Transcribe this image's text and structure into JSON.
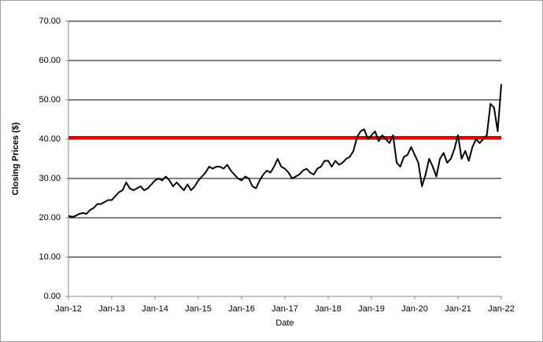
{
  "chart_data": {
    "type": "line",
    "x_label": "Date",
    "y_label": "Closing Prices ($)",
    "categories": [
      "Jan-12",
      null,
      null,
      null,
      null,
      null,
      null,
      null,
      null,
      null,
      null,
      null,
      "Jan-13",
      null,
      null,
      null,
      null,
      null,
      null,
      null,
      null,
      null,
      null,
      null,
      "Jan-14",
      null,
      null,
      null,
      null,
      null,
      null,
      null,
      null,
      null,
      null,
      null,
      "Jan-15",
      null,
      null,
      null,
      null,
      null,
      null,
      null,
      null,
      null,
      null,
      null,
      "Jan-16",
      null,
      null,
      null,
      null,
      null,
      null,
      null,
      null,
      null,
      null,
      null,
      "Jan-17",
      null,
      null,
      null,
      null,
      null,
      null,
      null,
      null,
      null,
      null,
      null,
      "Jan-18",
      null,
      null,
      null,
      null,
      null,
      null,
      null,
      null,
      null,
      null,
      null,
      "Jan-19",
      null,
      null,
      null,
      null,
      null,
      null,
      null,
      null,
      null,
      null,
      null,
      "Jan-20",
      null,
      null,
      null,
      null,
      null,
      null,
      null,
      null,
      null,
      null,
      null,
      "Jan-21",
      null,
      null,
      null,
      null,
      null,
      null,
      null,
      null,
      null,
      null,
      null,
      "Jan-22"
    ],
    "values": [
      20.5,
      20.2,
      20.5,
      21,
      21.2,
      21.0,
      22,
      22.5,
      23.5,
      23.5,
      24,
      24.5,
      24.5,
      25.5,
      26.5,
      27,
      29,
      27.5,
      27,
      27.5,
      28,
      27,
      27.5,
      28.5,
      29.5,
      30,
      29.5,
      30.5,
      29.5,
      28,
      29,
      28,
      27,
      28.5,
      27,
      28,
      29.5,
      30.5,
      31.5,
      33,
      32.5,
      33,
      33,
      32.5,
      33.5,
      32,
      31,
      30,
      29.5,
      30.5,
      30,
      28,
      27.5,
      29.5,
      31,
      32,
      31.5,
      33,
      35,
      33,
      32.5,
      31.5,
      30,
      30.5,
      31,
      32,
      32.5,
      31.5,
      31,
      32.5,
      33,
      34.5,
      34.5,
      33,
      34.5,
      33.5,
      34,
      35,
      35.5,
      37,
      40.5,
      42,
      42.5,
      40,
      41,
      42,
      39.5,
      41,
      40,
      39,
      41,
      34,
      33,
      35.5,
      36,
      38,
      36,
      34,
      28,
      31,
      35,
      33,
      30.5,
      35,
      36.5,
      34,
      35,
      37.5,
      41,
      35,
      37,
      34.5,
      38,
      40,
      39,
      40,
      41,
      49,
      48,
      42,
      54
    ],
    "color": "#000000",
    "reference_line": 40.4,
    "reference_color": "#e00000",
    "ylim": [
      0,
      70
    ],
    "yticks": [
      {
        "value": 0,
        "label": "0.00"
      },
      {
        "value": 10,
        "label": "10.00"
      },
      {
        "value": 20,
        "label": "20.00"
      },
      {
        "value": 30,
        "label": "30.00"
      },
      {
        "value": 40,
        "label": "40.00"
      },
      {
        "value": 50,
        "label": "50.00"
      },
      {
        "value": 60,
        "label": "60.00"
      },
      {
        "value": 70,
        "label": "70.00"
      }
    ],
    "grid": true
  }
}
